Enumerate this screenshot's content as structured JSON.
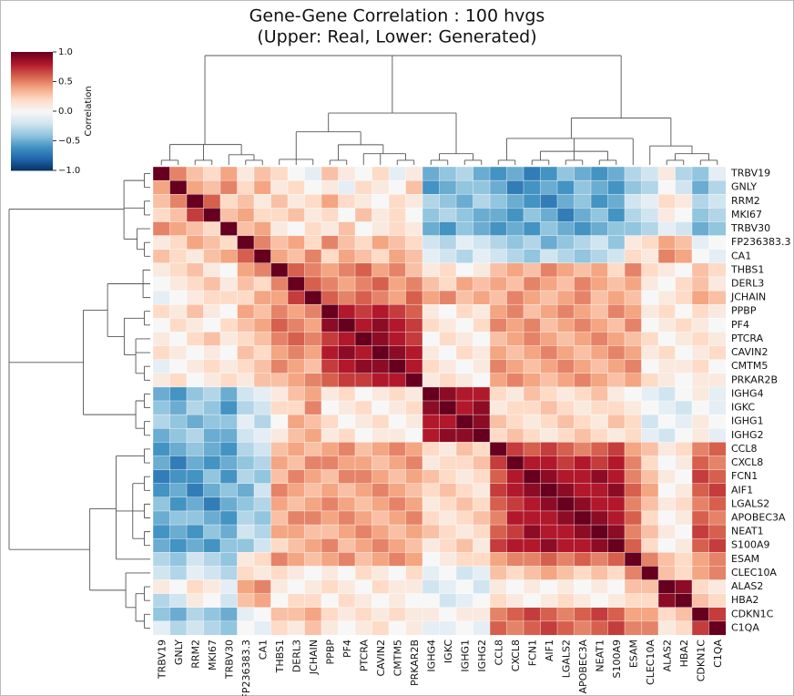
{
  "chart_data": {
    "type": "heatmap",
    "title": "Gene-Gene Correlation : 100 hvgs",
    "subtitle": "(Upper: Real, Lower: Generated)",
    "categories": [
      "TRBV19",
      "GNLY",
      "RRM2",
      "MKI67",
      "TRBV30",
      "FP236383.3",
      "CA1",
      "THBS1",
      "DERL3",
      "JCHAIN",
      "PPBP",
      "PF4",
      "PTCRA",
      "CAVIN2",
      "CMTM5",
      "PRKAR2B",
      "IGHG4",
      "IGKC",
      "IGHG1",
      "IGHG2",
      "CCL8",
      "CXCL8",
      "FCN1",
      "AIF1",
      "LGALS2",
      "APOBEC3A",
      "NEAT1",
      "S100A9",
      "ESAM",
      "CLEC10A",
      "ALAS2",
      "HBA2",
      "CDKN1C",
      "C1QA"
    ],
    "values": [
      [
        1,
        0.5,
        0.3,
        0.2,
        0.4,
        0.1,
        0.3,
        0.2,
        0,
        -0.1,
        0.3,
        0.1,
        0,
        0.2,
        -0.1,
        0.1,
        -0.5,
        -0.4,
        -0.3,
        -0.5,
        -0.6,
        -0.5,
        -0.7,
        -0.6,
        -0.4,
        -0.5,
        -0.6,
        -0.5,
        -0.3,
        -0.2,
        0.1,
        -0.3,
        -0.4,
        -0.1
      ],
      [
        0.4,
        1,
        0.4,
        0.3,
        0.5,
        0.2,
        0.4,
        0.1,
        0.2,
        0,
        0.1,
        -0.1,
        0.2,
        0.1,
        0,
        0.3,
        -0.6,
        -0.5,
        -0.4,
        -0.4,
        -0.5,
        -0.7,
        -0.6,
        -0.5,
        -0.6,
        -0.4,
        -0.5,
        -0.6,
        -0.4,
        -0.3,
        0,
        -0.2,
        -0.5,
        -0.3
      ],
      [
        0.3,
        0.5,
        1,
        0.6,
        0.2,
        0.3,
        0.1,
        0.3,
        0.1,
        0.2,
        0.4,
        0.2,
        0.1,
        0,
        0.2,
        0.1,
        -0.3,
        -0.4,
        -0.5,
        -0.3,
        -0.4,
        -0.5,
        -0.6,
        -0.7,
        -0.5,
        -0.4,
        -0.6,
        -0.5,
        -0.2,
        -0.1,
        0.2,
        0.1,
        -0.3,
        -0.2
      ],
      [
        0.2,
        0.3,
        0.7,
        1,
        0.3,
        0.4,
        0.2,
        0.2,
        0.3,
        0.1,
        0.2,
        0,
        0.3,
        0.1,
        0.2,
        0,
        -0.4,
        -0.3,
        -0.4,
        -0.5,
        -0.5,
        -0.6,
        -0.4,
        -0.5,
        -0.7,
        -0.5,
        -0.4,
        -0.6,
        -0.3,
        -0.2,
        0.1,
        0,
        -0.4,
        -0.3
      ],
      [
        0.5,
        0.4,
        0.3,
        0.2,
        1,
        0.3,
        0.4,
        0.1,
        0,
        0.2,
        0.1,
        0.3,
        0,
        0.1,
        0.2,
        0.1,
        -0.5,
        -0.6,
        -0.4,
        -0.5,
        -0.6,
        -0.5,
        -0.6,
        -0.4,
        -0.5,
        -0.6,
        -0.5,
        -0.4,
        -0.4,
        -0.3,
        -0.1,
        -0.2,
        -0.5,
        -0.4
      ],
      [
        0.1,
        0.2,
        0.4,
        0.3,
        0.2,
        1,
        0.5,
        0.3,
        0.4,
        0.2,
        0.5,
        0.3,
        0.2,
        0.4,
        0.3,
        0.2,
        -0.2,
        -0.3,
        -0.1,
        -0.2,
        -0.3,
        -0.4,
        -0.3,
        -0.5,
        -0.4,
        -0.3,
        -0.2,
        -0.4,
        0.1,
        0.2,
        0.4,
        0.3,
        -0.1,
        0
      ],
      [
        0.3,
        0.2,
        0.1,
        0.3,
        0.4,
        0.6,
        1,
        0.4,
        0.3,
        0.5,
        0.2,
        0.4,
        0.3,
        0.2,
        0.4,
        0.3,
        -0.1,
        -0.2,
        -0.3,
        -0.1,
        -0.2,
        -0.3,
        -0.4,
        -0.2,
        -0.3,
        -0.4,
        -0.3,
        -0.2,
        0.2,
        0.1,
        0.5,
        0.4,
        0,
        -0.1
      ],
      [
        0.1,
        0.2,
        0.3,
        0.1,
        0,
        0.4,
        0.5,
        1,
        0.6,
        0.5,
        0.4,
        0.5,
        0.6,
        0.4,
        0.5,
        0.3,
        0.1,
        0.2,
        0,
        0.1,
        0.3,
        0.4,
        0.3,
        0.5,
        0.4,
        0.3,
        0.4,
        0.2,
        0.5,
        0.2,
        0.1,
        0,
        0.3,
        0.2
      ],
      [
        0,
        0.1,
        0.2,
        0.3,
        0.1,
        0.3,
        0.2,
        0.5,
        1,
        0.6,
        0.5,
        0.4,
        0.5,
        0.6,
        0.4,
        0.5,
        0.3,
        0.2,
        0.4,
        0.3,
        0.4,
        0.3,
        0.5,
        0.4,
        0.3,
        0.5,
        0.4,
        0.3,
        0.4,
        0.1,
        0,
        0.2,
        0.3,
        0.1
      ],
      [
        -0.1,
        0,
        0.1,
        0.2,
        0.2,
        0.2,
        0.4,
        0.4,
        0.7,
        1,
        0.6,
        0.5,
        0.6,
        0.5,
        0.4,
        0.6,
        0.4,
        0.5,
        0.3,
        0.4,
        0.3,
        0.5,
        0.4,
        0.3,
        0.4,
        0.5,
        0.3,
        0.4,
        0.3,
        0,
        0.1,
        0.2,
        0.4,
        0.3
      ],
      [
        0.2,
        0.1,
        0.3,
        0.1,
        0,
        0.4,
        0.3,
        0.5,
        0.4,
        0.5,
        1,
        0.8,
        0.7,
        0.8,
        0.7,
        0.6,
        0.1,
        0,
        0.2,
        0.1,
        0.4,
        0.5,
        0.3,
        0.4,
        0.5,
        0.4,
        0.3,
        0.5,
        0.4,
        0.1,
        0.2,
        0,
        0.2,
        0.1
      ],
      [
        0,
        0.2,
        0.1,
        0,
        0.2,
        0.3,
        0.4,
        0.6,
        0.5,
        0.4,
        0.9,
        1,
        0.8,
        0.9,
        0.8,
        0.7,
        0.2,
        0.1,
        0,
        0.2,
        0.5,
        0.4,
        0.5,
        0.3,
        0.4,
        0.5,
        0.4,
        0.3,
        0.5,
        0,
        0.1,
        0.2,
        0.1,
        0
      ],
      [
        0.1,
        0,
        0.2,
        0.3,
        0.1,
        0.2,
        0.3,
        0.5,
        0.6,
        0.5,
        0.7,
        0.8,
        1,
        0.9,
        0.8,
        0.7,
        0,
        0.2,
        0.1,
        0,
        0.3,
        0.4,
        0.5,
        0.4,
        0.3,
        0.4,
        0.5,
        0.4,
        0.3,
        0.2,
        0,
        0.1,
        0.2,
        0.1
      ],
      [
        0.2,
        0.1,
        0,
        0.1,
        0,
        0.3,
        0.2,
        0.4,
        0.5,
        0.4,
        0.8,
        0.9,
        0.8,
        1,
        0.9,
        0.8,
        0.1,
        0,
        0.2,
        0.1,
        0.4,
        0.3,
        0.4,
        0.5,
        0.4,
        0.3,
        0.4,
        0.5,
        0.4,
        0.1,
        0.2,
        0,
        0.1,
        0.2
      ],
      [
        -0.1,
        0,
        0.1,
        0.2,
        0.1,
        0.2,
        0.3,
        0.5,
        0.4,
        0.3,
        0.7,
        0.8,
        0.9,
        0.9,
        1,
        0.8,
        0.2,
        0.1,
        0,
        0.1,
        0.5,
        0.4,
        0.3,
        0.4,
        0.5,
        0.4,
        0.3,
        0.4,
        0.5,
        0,
        0.1,
        0.1,
        0.2,
        0
      ],
      [
        0.1,
        0.2,
        0,
        0.1,
        0.2,
        0.1,
        0.3,
        0.3,
        0.4,
        0.5,
        0.6,
        0.7,
        0.7,
        0.8,
        0.8,
        1,
        0.1,
        0.2,
        0.1,
        0,
        0.4,
        0.5,
        0.4,
        0.3,
        0.4,
        0.5,
        0.4,
        0.3,
        0.4,
        0.2,
        0.1,
        0,
        0.1,
        0.1
      ],
      [
        -0.5,
        -0.6,
        -0.4,
        -0.3,
        -0.5,
        -0.2,
        -0.1,
        0.1,
        0.3,
        0.4,
        0.1,
        0.2,
        0,
        0.1,
        0.2,
        0.1,
        1,
        0.9,
        0.8,
        0.8,
        0.2,
        0.1,
        0.3,
        0.2,
        0.1,
        0.2,
        0.3,
        0.1,
        0,
        -0.1,
        -0.2,
        0,
        0.1,
        -0.1
      ],
      [
        -0.4,
        -0.5,
        -0.3,
        -0.4,
        -0.6,
        -0.3,
        -0.2,
        0.2,
        0.2,
        0.5,
        0,
        0.1,
        0.2,
        0,
        0.1,
        0.2,
        0.9,
        1,
        0.8,
        0.9,
        0.1,
        0.2,
        0.2,
        0.3,
        0.2,
        0.1,
        0.2,
        0.2,
        0.1,
        0,
        -0.1,
        -0.2,
        0,
        -0.1
      ],
      [
        -0.3,
        -0.4,
        -0.5,
        -0.4,
        -0.4,
        -0.1,
        -0.3,
        0,
        0.4,
        0.3,
        0.2,
        0,
        0.1,
        0.2,
        0,
        0.1,
        0.8,
        0.8,
        1,
        0.9,
        0.3,
        0.2,
        0.1,
        0.2,
        0.3,
        0.2,
        0.1,
        0.3,
        0.2,
        -0.2,
        0,
        -0.1,
        0.1,
        0
      ],
      [
        -0.5,
        -0.4,
        -0.3,
        -0.5,
        -0.5,
        -0.2,
        -0.1,
        0.1,
        0.3,
        0.4,
        0.1,
        0.2,
        0,
        0.1,
        0.1,
        0,
        0.8,
        0.9,
        0.9,
        1,
        0.2,
        0.3,
        0.2,
        0.1,
        0.2,
        0.3,
        0.2,
        0.1,
        0.2,
        -0.1,
        -0.2,
        0,
        0.1,
        -0.1
      ],
      [
        -0.6,
        -0.5,
        -0.4,
        -0.5,
        -0.6,
        -0.3,
        -0.2,
        0.3,
        0.4,
        0.3,
        0.4,
        0.5,
        0.3,
        0.4,
        0.5,
        0.4,
        0.2,
        0.1,
        0.3,
        0.2,
        1,
        0.7,
        0.6,
        0.7,
        0.6,
        0.5,
        0.6,
        0.7,
        0.4,
        0.3,
        0.1,
        0.2,
        0.5,
        0.6
      ],
      [
        -0.5,
        -0.7,
        -0.5,
        -0.6,
        -0.5,
        -0.4,
        -0.3,
        0.4,
        0.3,
        0.5,
        0.5,
        0.4,
        0.4,
        0.3,
        0.4,
        0.5,
        0.1,
        0.2,
        0.2,
        0.3,
        0.7,
        1,
        0.8,
        0.8,
        0.7,
        0.8,
        0.7,
        0.8,
        0.5,
        0.2,
        0,
        0.1,
        0.6,
        0.5
      ],
      [
        -0.7,
        -0.6,
        -0.6,
        -0.4,
        -0.6,
        -0.3,
        -0.4,
        0.3,
        0.5,
        0.4,
        0.3,
        0.5,
        0.5,
        0.4,
        0.3,
        0.4,
        0.3,
        0.2,
        0.1,
        0.2,
        0.6,
        0.8,
        1,
        0.9,
        0.8,
        0.8,
        0.9,
        0.8,
        0.5,
        0.3,
        0.1,
        0,
        0.7,
        0.6
      ],
      [
        -0.6,
        -0.5,
        -0.7,
        -0.5,
        -0.4,
        -0.5,
        -0.2,
        0.5,
        0.4,
        0.3,
        0.4,
        0.3,
        0.4,
        0.5,
        0.4,
        0.3,
        0.2,
        0.3,
        0.2,
        0.1,
        0.7,
        0.8,
        0.9,
        1,
        0.9,
        0.8,
        0.8,
        0.9,
        0.6,
        0.4,
        0,
        0.1,
        0.6,
        0.7
      ],
      [
        -0.4,
        -0.6,
        -0.5,
        -0.7,
        -0.5,
        -0.4,
        -0.3,
        0.4,
        0.3,
        0.4,
        0.5,
        0.4,
        0.3,
        0.4,
        0.5,
        0.4,
        0.1,
        0.2,
        0.3,
        0.2,
        0.6,
        0.7,
        0.8,
        0.9,
        1,
        0.9,
        0.8,
        0.8,
        0.5,
        0.3,
        0.1,
        0.2,
        0.5,
        0.6
      ],
      [
        -0.5,
        -0.4,
        -0.4,
        -0.5,
        -0.6,
        -0.3,
        -0.4,
        0.3,
        0.5,
        0.5,
        0.4,
        0.5,
        0.4,
        0.3,
        0.4,
        0.5,
        0.2,
        0.1,
        0.2,
        0.3,
        0.5,
        0.8,
        0.8,
        0.8,
        0.9,
        1,
        0.9,
        0.8,
        0.6,
        0.2,
        0,
        0.1,
        0.6,
        0.5
      ],
      [
        -0.6,
        -0.5,
        -0.6,
        -0.4,
        -0.5,
        -0.2,
        -0.3,
        0.4,
        0.4,
        0.3,
        0.3,
        0.4,
        0.5,
        0.4,
        0.3,
        0.4,
        0.3,
        0.2,
        0.1,
        0.2,
        0.6,
        0.7,
        0.9,
        0.8,
        0.8,
        0.9,
        1,
        0.9,
        0.5,
        0.3,
        0.1,
        0,
        0.7,
        0.6
      ],
      [
        -0.5,
        -0.6,
        -0.5,
        -0.6,
        -0.4,
        -0.4,
        -0.2,
        0.2,
        0.3,
        0.4,
        0.5,
        0.3,
        0.4,
        0.5,
        0.4,
        0.3,
        0.1,
        0.2,
        0.3,
        0.1,
        0.7,
        0.8,
        0.8,
        0.9,
        0.8,
        0.8,
        0.9,
        1,
        0.6,
        0.2,
        0,
        0.1,
        0.6,
        0.7
      ],
      [
        -0.3,
        -0.4,
        -0.2,
        -0.3,
        -0.4,
        0.1,
        0.2,
        0.5,
        0.4,
        0.3,
        0.4,
        0.5,
        0.3,
        0.4,
        0.5,
        0.4,
        0,
        0.1,
        0.2,
        0.2,
        0.4,
        0.5,
        0.5,
        0.6,
        0.5,
        0.6,
        0.5,
        0.6,
        1,
        0.5,
        0.3,
        0.2,
        0.4,
        0.5
      ],
      [
        -0.2,
        -0.3,
        -0.1,
        -0.2,
        -0.3,
        0.2,
        0.1,
        0.2,
        0.1,
        0,
        0.1,
        0,
        0.2,
        0.1,
        0,
        0.2,
        -0.1,
        0,
        -0.2,
        -0.1,
        0.3,
        0.2,
        0.3,
        0.4,
        0.3,
        0.2,
        0.3,
        0.2,
        0.5,
        1,
        0.3,
        0.2,
        0.4,
        0.5
      ],
      [
        0.1,
        0,
        0.2,
        0.1,
        -0.1,
        0.4,
        0.5,
        0.1,
        0,
        0.1,
        0.2,
        0.1,
        0,
        0.2,
        0.1,
        0.1,
        -0.2,
        -0.1,
        0,
        -0.2,
        0.1,
        0,
        0.1,
        0,
        0.1,
        0,
        0.1,
        0,
        0.3,
        0.3,
        1,
        0.9,
        0.2,
        0.1
      ],
      [
        -0.3,
        -0.2,
        0.1,
        0,
        -0.2,
        0.3,
        0.4,
        0,
        0.2,
        0.2,
        0,
        0.2,
        0.1,
        0,
        0.1,
        0,
        0,
        -0.2,
        -0.1,
        0,
        0.2,
        0.1,
        0,
        0.1,
        0.2,
        0.1,
        0,
        0.1,
        0.2,
        0.2,
        0.9,
        1,
        0.3,
        0.2
      ],
      [
        -0.4,
        -0.5,
        -0.3,
        -0.4,
        -0.5,
        -0.1,
        0,
        0.3,
        0.3,
        0.4,
        0.2,
        0.1,
        0.2,
        0.1,
        0.2,
        0.1,
        0.1,
        0,
        0.1,
        0.1,
        0.5,
        0.6,
        0.7,
        0.6,
        0.5,
        0.6,
        0.7,
        0.6,
        0.4,
        0.4,
        0.2,
        0.3,
        1,
        0.7
      ],
      [
        -0.1,
        -0.3,
        -0.2,
        -0.3,
        -0.4,
        0,
        -0.1,
        0.2,
        0.1,
        0.3,
        0.1,
        0,
        0.1,
        0.2,
        0,
        0.1,
        -0.1,
        -0.1,
        0,
        -0.1,
        0.6,
        0.5,
        0.6,
        0.7,
        0.6,
        0.5,
        0.6,
        0.7,
        0.5,
        0.5,
        0.1,
        0.2,
        0.7,
        1
      ]
    ],
    "colorscale": [
      "#053061",
      "#2166ac",
      "#4393c3",
      "#92c5de",
      "#d1e5f0",
      "#f7f7f7",
      "#fddbc7",
      "#f4a582",
      "#d6604d",
      "#b2182b",
      "#67001f"
    ],
    "colorbar_label": "Correlation",
    "clim": [
      -1,
      1
    ],
    "cticks": [
      {
        "value": 1,
        "label": "1.0"
      },
      {
        "value": 0.5,
        "label": "0.5"
      },
      {
        "value": 0,
        "label": "0.0"
      },
      {
        "value": -0.5,
        "label": "−0.5"
      },
      {
        "value": -1,
        "label": "−1.0"
      }
    ]
  }
}
